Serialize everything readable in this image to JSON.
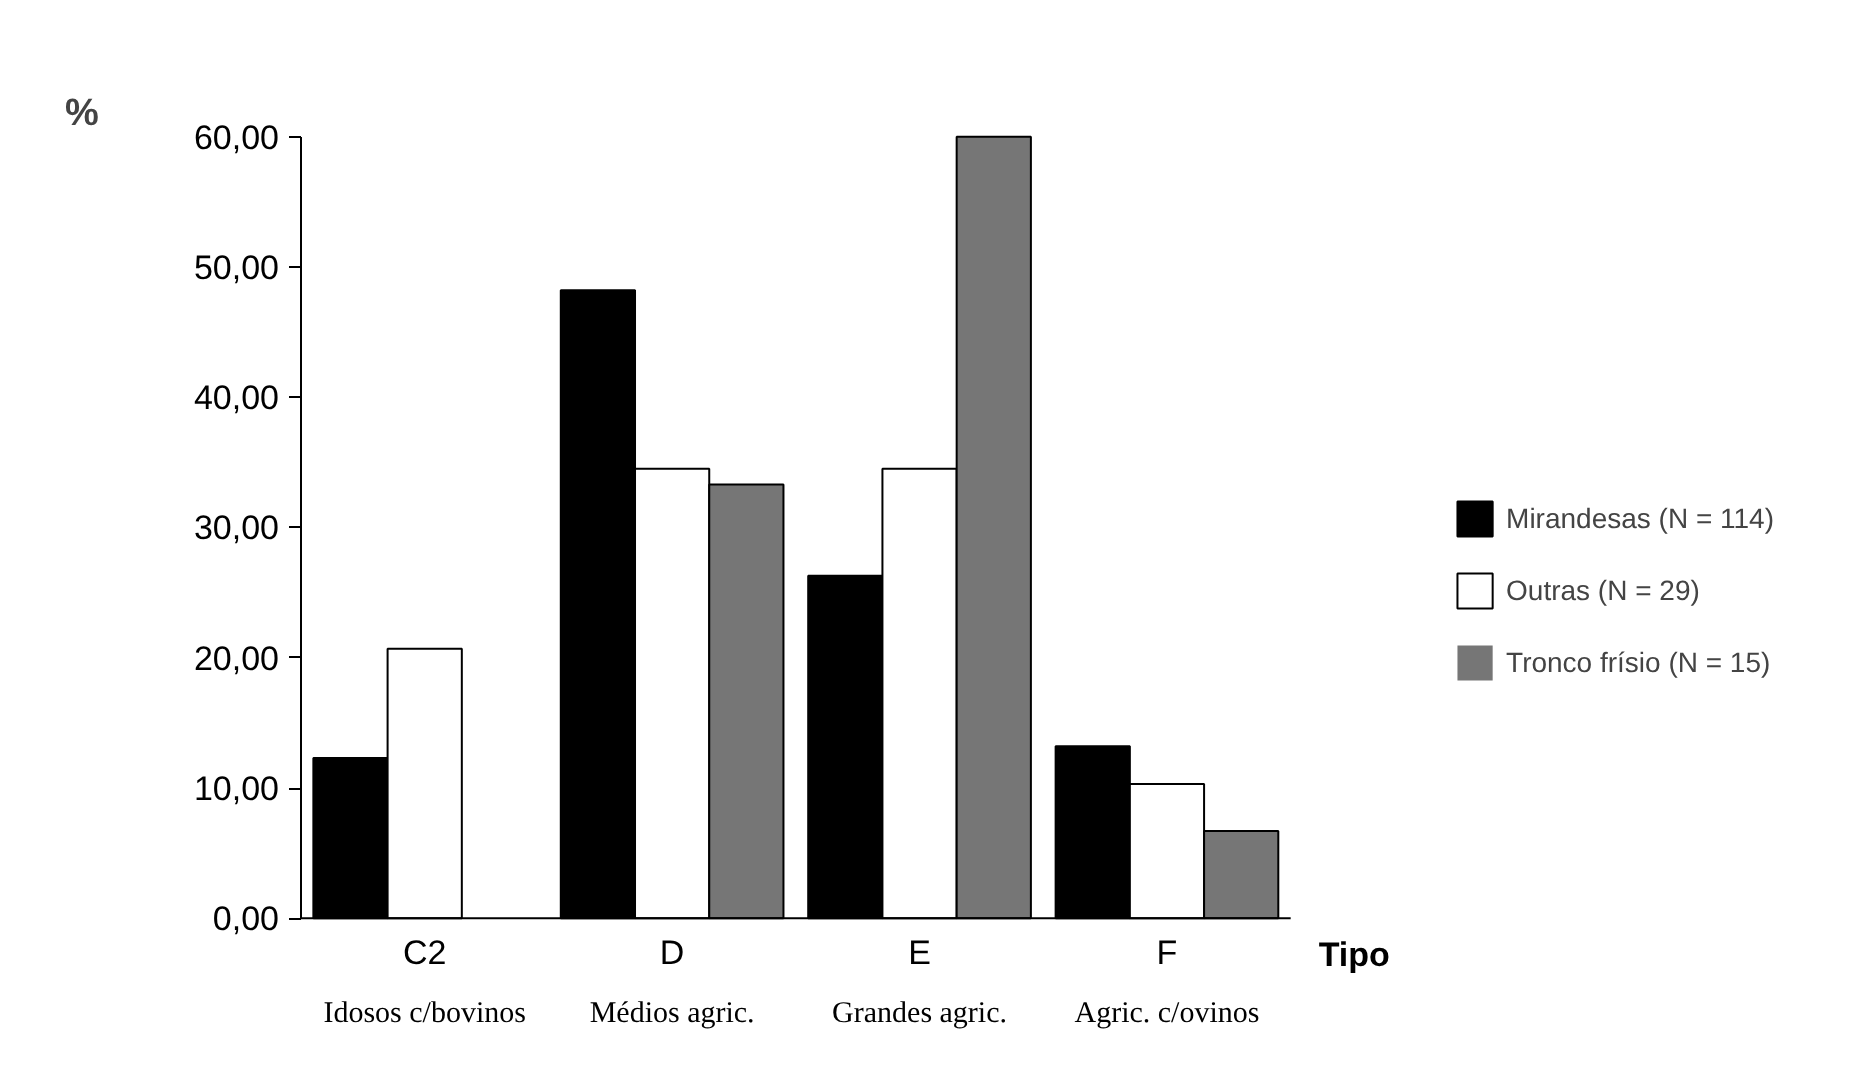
{
  "chart_data": {
    "type": "bar",
    "ylabel": "%",
    "xlabel": "Tipo",
    "categories": [
      "C2",
      "D",
      "E",
      "F"
    ],
    "series": [
      {
        "name": "Mirandesas (N = 114)",
        "color": "#000000",
        "values": [
          12.3,
          48.2,
          26.3,
          13.2
        ]
      },
      {
        "name": "Outras (N = 29)",
        "color": "#ffffff",
        "values": [
          20.7,
          34.5,
          34.5,
          10.3
        ]
      },
      {
        "name": "Tronco frísio (N = 15)",
        "color": "#767676",
        "values": [
          0,
          33.3,
          60.0,
          6.7
        ]
      }
    ],
    "ylim": [
      0,
      60
    ],
    "yticks": [
      {
        "value": 0,
        "label": "0,00"
      },
      {
        "value": 10,
        "label": "10,00"
      },
      {
        "value": 20,
        "label": "20,00"
      },
      {
        "value": 30,
        "label": "30,00"
      },
      {
        "value": 40,
        "label": "40,00"
      },
      {
        "value": 50,
        "label": "50,00"
      },
      {
        "value": 60,
        "label": "60,00"
      }
    ],
    "annotations": [
      "Idosos c/bovinos",
      "Médios agric.",
      "Grandes agric.",
      "Agric. c/ovinos"
    ],
    "grid": false,
    "legend": "right"
  }
}
